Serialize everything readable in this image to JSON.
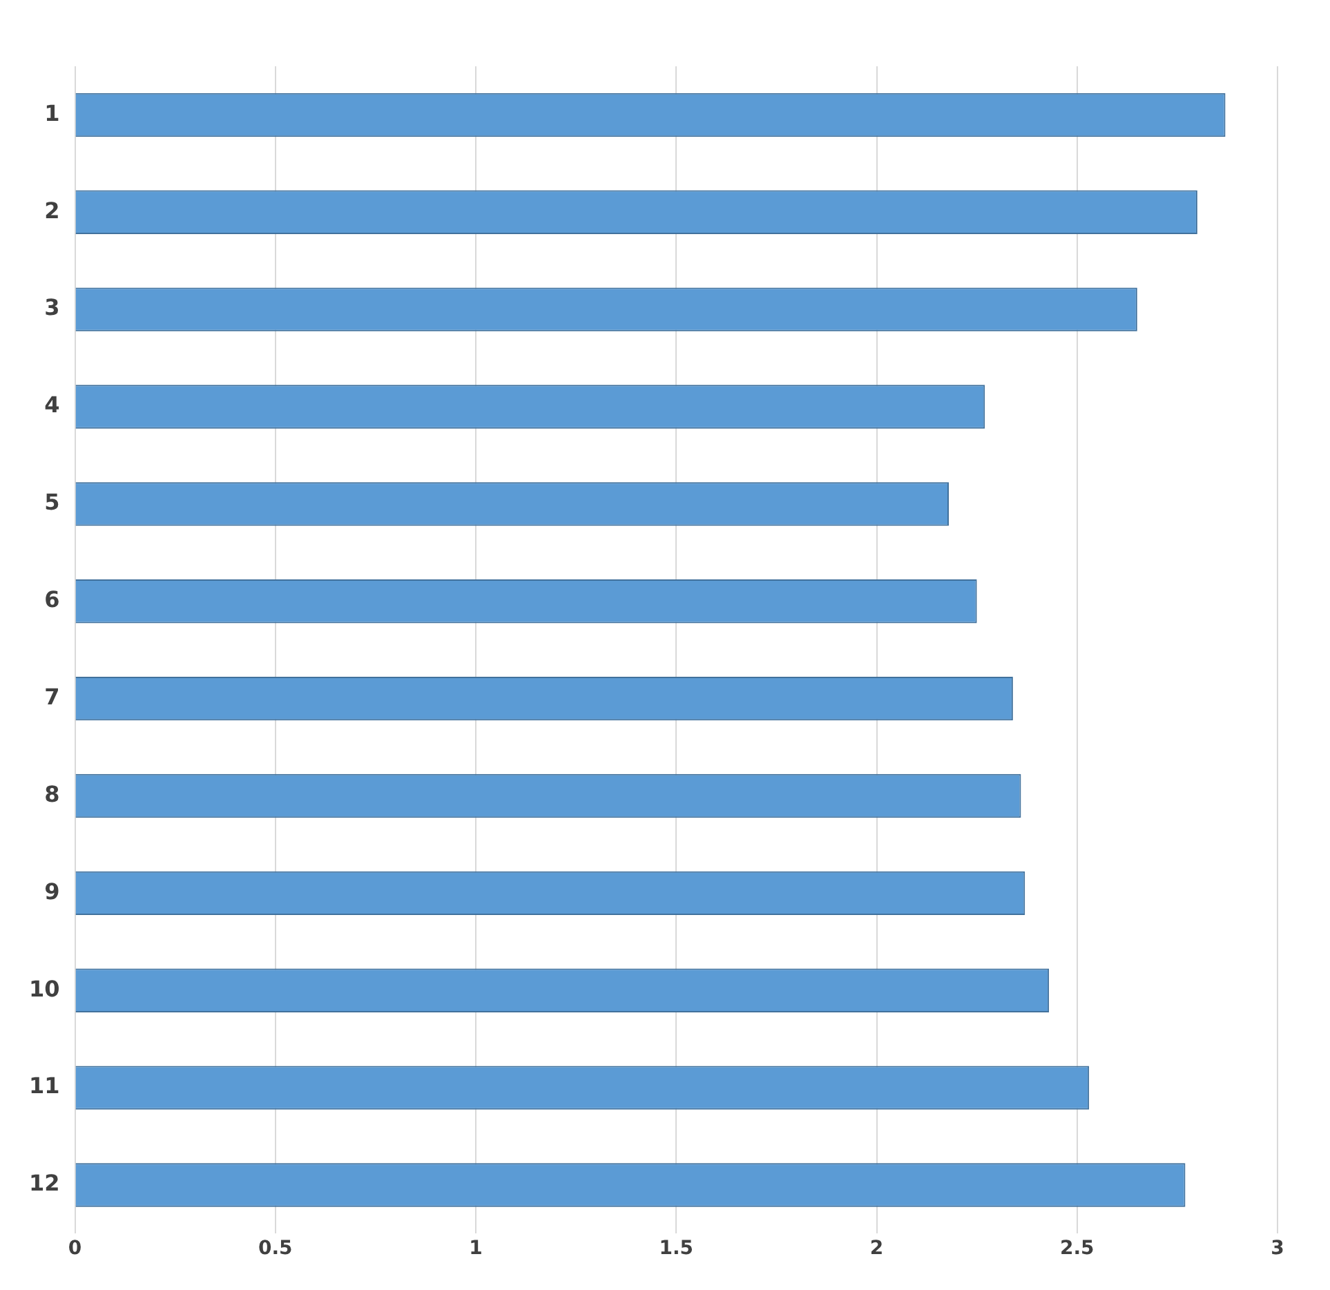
{
  "chart_data": {
    "type": "bar",
    "orientation": "horizontal",
    "categories": [
      "1",
      "2",
      "3",
      "4",
      "5",
      "6",
      "7",
      "8",
      "9",
      "10",
      "11",
      "12"
    ],
    "values": [
      2.87,
      2.8,
      2.65,
      2.27,
      2.18,
      2.25,
      2.34,
      2.36,
      2.37,
      2.43,
      2.53,
      2.77
    ],
    "color": "#5b9bd5",
    "xlim": [
      0,
      3
    ],
    "xticks": [
      0,
      0.5,
      1,
      1.5,
      2,
      2.5,
      3
    ],
    "grid": "x",
    "legend": false
  }
}
